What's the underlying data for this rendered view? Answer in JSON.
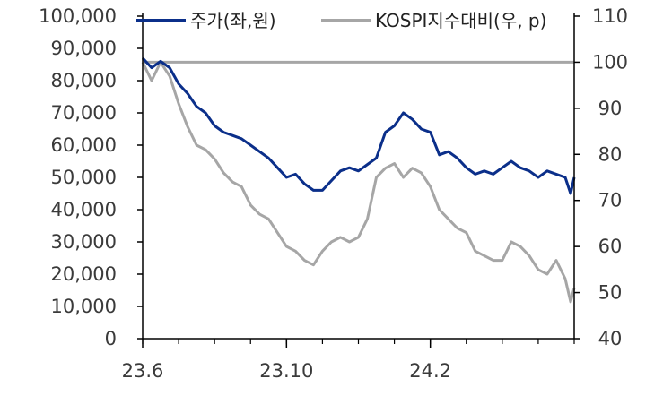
{
  "chart_data": {
    "type": "line",
    "x_ticks": [
      "23.6",
      "23.10",
      "24.2"
    ],
    "y_left": {
      "range": [
        0,
        100000
      ],
      "ticks": [
        0,
        10000,
        20000,
        30000,
        40000,
        50000,
        60000,
        70000,
        80000,
        90000,
        100000
      ],
      "tick_labels": [
        "0",
        "10,000",
        "20,000",
        "30,000",
        "40,000",
        "50,000",
        "60,000",
        "70,000",
        "80,000",
        "90,000",
        "100,000"
      ]
    },
    "y_right": {
      "range": [
        40,
        110
      ],
      "ticks": [
        40,
        50,
        60,
        70,
        80,
        90,
        100,
        110
      ],
      "tick_labels": [
        "40",
        "50",
        "60",
        "70",
        "80",
        "90",
        "100",
        "110"
      ]
    },
    "reference_line": {
      "axis": "right",
      "value": 100
    },
    "x_range": [
      0,
      12
    ],
    "legend_position": "top",
    "series": [
      {
        "name": "주가(좌,원)",
        "axis": "left",
        "color": "#0b2f8a",
        "points": [
          [
            0,
            87000
          ],
          [
            0.25,
            84000
          ],
          [
            0.5,
            86000
          ],
          [
            0.75,
            84000
          ],
          [
            1,
            79000
          ],
          [
            1.25,
            76000
          ],
          [
            1.5,
            72000
          ],
          [
            1.75,
            70000
          ],
          [
            2,
            66000
          ],
          [
            2.25,
            64000
          ],
          [
            2.5,
            63000
          ],
          [
            2.75,
            62000
          ],
          [
            3,
            60000
          ],
          [
            3.25,
            58000
          ],
          [
            3.5,
            56000
          ],
          [
            3.75,
            53000
          ],
          [
            4,
            50000
          ],
          [
            4.25,
            51000
          ],
          [
            4.5,
            48000
          ],
          [
            4.75,
            46000
          ],
          [
            5,
            46000
          ],
          [
            5.25,
            49000
          ],
          [
            5.5,
            52000
          ],
          [
            5.75,
            53000
          ],
          [
            6,
            52000
          ],
          [
            6.25,
            54000
          ],
          [
            6.5,
            56000
          ],
          [
            6.75,
            64000
          ],
          [
            7,
            66000
          ],
          [
            7.25,
            70000
          ],
          [
            7.5,
            68000
          ],
          [
            7.75,
            65000
          ],
          [
            8,
            64000
          ],
          [
            8.25,
            57000
          ],
          [
            8.5,
            58000
          ],
          [
            8.75,
            56000
          ],
          [
            9,
            53000
          ],
          [
            9.25,
            51000
          ],
          [
            9.5,
            52000
          ],
          [
            9.75,
            51000
          ],
          [
            10,
            53000
          ],
          [
            10.25,
            55000
          ],
          [
            10.5,
            53000
          ],
          [
            10.75,
            52000
          ],
          [
            11,
            50000
          ],
          [
            11.25,
            52000
          ],
          [
            11.5,
            51000
          ],
          [
            11.75,
            50000
          ],
          [
            11.9,
            45000
          ],
          [
            12,
            50000
          ]
        ]
      },
      {
        "name": "KOSPI지수대비(우, p)",
        "axis": "right",
        "color": "#a6a6a6",
        "points": [
          [
            0,
            100
          ],
          [
            0.25,
            96
          ],
          [
            0.5,
            100
          ],
          [
            0.75,
            97
          ],
          [
            1,
            91
          ],
          [
            1.25,
            86
          ],
          [
            1.5,
            82
          ],
          [
            1.75,
            81
          ],
          [
            2,
            79
          ],
          [
            2.25,
            76
          ],
          [
            2.5,
            74
          ],
          [
            2.75,
            73
          ],
          [
            3,
            69
          ],
          [
            3.25,
            67
          ],
          [
            3.5,
            66
          ],
          [
            3.75,
            63
          ],
          [
            4,
            60
          ],
          [
            4.25,
            59
          ],
          [
            4.5,
            57
          ],
          [
            4.75,
            56
          ],
          [
            5,
            59
          ],
          [
            5.25,
            61
          ],
          [
            5.5,
            62
          ],
          [
            5.75,
            61
          ],
          [
            6,
            62
          ],
          [
            6.25,
            66
          ],
          [
            6.5,
            75
          ],
          [
            6.75,
            77
          ],
          [
            7,
            78
          ],
          [
            7.25,
            75
          ],
          [
            7.5,
            77
          ],
          [
            7.75,
            76
          ],
          [
            8,
            73
          ],
          [
            8.25,
            68
          ],
          [
            8.5,
            66
          ],
          [
            8.75,
            64
          ],
          [
            9,
            63
          ],
          [
            9.25,
            59
          ],
          [
            9.5,
            58
          ],
          [
            9.75,
            57
          ],
          [
            10,
            57
          ],
          [
            10.25,
            61
          ],
          [
            10.5,
            60
          ],
          [
            10.75,
            58
          ],
          [
            11,
            55
          ],
          [
            11.25,
            54
          ],
          [
            11.5,
            57
          ],
          [
            11.75,
            53
          ],
          [
            11.9,
            48
          ],
          [
            12,
            51
          ]
        ]
      }
    ]
  }
}
